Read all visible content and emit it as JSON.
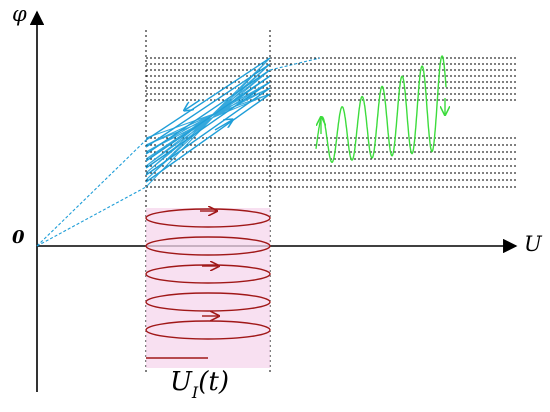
{
  "labels": {
    "phi": "φ",
    "u_axis": "U",
    "origin": "0",
    "signal_base": "U",
    "signal_sub": "I",
    "signal_arg": "(t)"
  },
  "colors": {
    "axis": "#000000",
    "hysteresis": "#1f9ed8",
    "output_wave": "#3ddc3d",
    "input_wave": "#a01818",
    "input_band": "#f6d6ec",
    "guides": "#000000"
  }
}
